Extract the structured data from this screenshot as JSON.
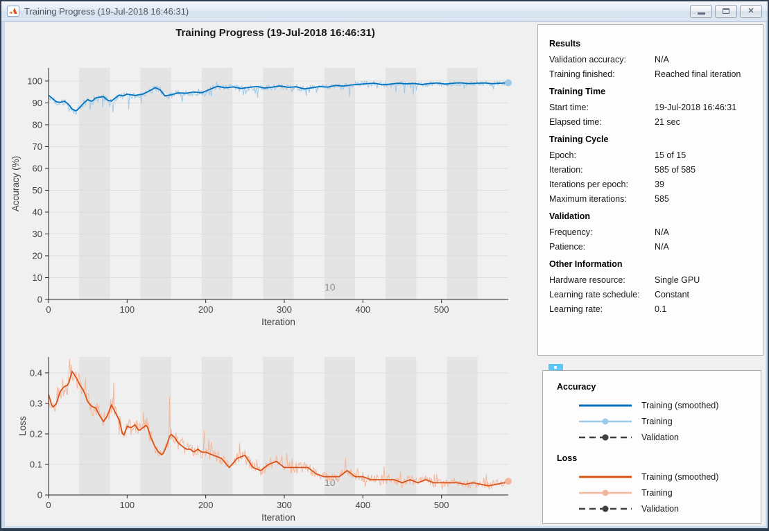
{
  "window": {
    "title": "Training Progress (19-Jul-2018 16:46:31)",
    "icon": "matlab-logo",
    "buttons": {
      "minimize": "Minimize",
      "maximize": "Maximize",
      "close": "Close"
    }
  },
  "figure_title": "Training Progress (19-Jul-2018 16:46:31)",
  "colors": {
    "accent_blue": "#0072BD",
    "light_blue": "#9ec9e8",
    "accent_orange": "#D95319",
    "light_orange": "#f5b79b",
    "validation_gray": "#3f3f3f",
    "epoch_band": "#e4e4e4",
    "figure_bg": "#f0f0f0",
    "axis_text": "#424242",
    "epoch_label_gray": "#8c8c8c"
  },
  "info_panel": {
    "sections": [
      {
        "header": "Results",
        "rows": [
          {
            "label": "Validation accuracy:",
            "value": "N/A"
          },
          {
            "label": "Training finished:",
            "value": "Reached final iteration"
          }
        ]
      },
      {
        "header": "Training Time",
        "rows": [
          {
            "label": "Start time:",
            "value": "19-Jul-2018 16:46:31"
          },
          {
            "label": "Elapsed time:",
            "value": "21 sec"
          }
        ]
      },
      {
        "header": "Training Cycle",
        "rows": [
          {
            "label": "Epoch:",
            "value": "15 of 15"
          },
          {
            "label": "Iteration:",
            "value": "585 of 585"
          },
          {
            "label": "Iterations per epoch:",
            "value": "39"
          },
          {
            "label": "Maximum iterations:",
            "value": "585"
          }
        ]
      },
      {
        "header": "Validation",
        "rows": [
          {
            "label": "Frequency:",
            "value": "N/A"
          },
          {
            "label": "Patience:",
            "value": "N/A"
          }
        ]
      },
      {
        "header": "Other Information",
        "rows": [
          {
            "label": "Hardware resource:",
            "value": "Single GPU"
          },
          {
            "label": "Learning rate schedule:",
            "value": "Constant"
          },
          {
            "label": "Learning rate:",
            "value": "0.1"
          }
        ]
      }
    ]
  },
  "legend_panel": {
    "groups": [
      {
        "header": "Accuracy",
        "items": [
          {
            "label": "Training (smoothed)",
            "style": "solid",
            "color": "#0072BD"
          },
          {
            "label": "Training",
            "style": "line-marker",
            "color": "#9ec9e8"
          },
          {
            "label": "Validation",
            "style": "dashed-marker",
            "color": "#3f3f3f"
          }
        ]
      },
      {
        "header": "Loss",
        "items": [
          {
            "label": "Training (smoothed)",
            "style": "solid",
            "color": "#D95319"
          },
          {
            "label": "Training",
            "style": "line-marker",
            "color": "#f5b79b"
          },
          {
            "label": "Validation",
            "style": "dashed-marker",
            "color": "#3f3f3f"
          }
        ]
      }
    ]
  },
  "chart_data": [
    {
      "type": "line",
      "id": "accuracy",
      "ylabel": "Accuracy (%)",
      "xlabel": "Iteration",
      "xlim": [
        0,
        585
      ],
      "ylim": [
        0,
        106
      ],
      "xticks": [
        0,
        100,
        200,
        300,
        400,
        500
      ],
      "yticks": [
        0,
        10,
        20,
        30,
        40,
        50,
        60,
        70,
        80,
        90,
        100
      ],
      "grid": "horizontal",
      "epochs": 15,
      "iterations_per_epoch": 39,
      "shaded_epochs": "even",
      "epoch_label": {
        "text": "10",
        "iter": 358
      },
      "series": [
        {
          "name": "Training (smoothed)",
          "color": "#0072BD",
          "width": 1.8,
          "plotted": true,
          "x": [
            0,
            5,
            10,
            15,
            20,
            25,
            30,
            35,
            40,
            45,
            50,
            55,
            60,
            65,
            70,
            75,
            80,
            85,
            90,
            95,
            100,
            110,
            120,
            130,
            136,
            142,
            148,
            155,
            165,
            175,
            185,
            195,
            205,
            215,
            225,
            235,
            245,
            255,
            265,
            275,
            285,
            295,
            305,
            315,
            325,
            335,
            345,
            355,
            365,
            375,
            385,
            395,
            405,
            415,
            425,
            435,
            445,
            455,
            465,
            475,
            485,
            495,
            505,
            515,
            525,
            535,
            545,
            555,
            565,
            575,
            585
          ],
          "y": [
            93.5,
            92,
            90.5,
            90.2,
            90.8,
            89.5,
            87.2,
            86.2,
            88,
            90,
            91.5,
            90.6,
            92.3,
            92.6,
            92.9,
            91.2,
            90.8,
            92.3,
            93.6,
            93.2,
            94,
            93.4,
            94,
            95.8,
            97,
            96,
            93.2,
            93.6,
            94.6,
            94.4,
            95,
            94.6,
            96.2,
            97.6,
            96.9,
            97.3,
            96.6,
            97.1,
            97.5,
            96.8,
            97.2,
            97.8,
            97.1,
            97.4,
            96.4,
            96.9,
            97.5,
            97.2,
            98,
            97.7,
            98.2,
            98.5,
            98.8,
            99,
            98.3,
            98.6,
            99,
            98.7,
            98.9,
            98.4,
            98.9,
            99.1,
            98.6,
            99,
            99.2,
            98.8,
            99,
            99.1,
            98.8,
            99,
            99.2
          ]
        },
        {
          "name": "Training",
          "color": "#9ec9e8",
          "width": 1,
          "plotted": true,
          "derived": "noisy-around-smoothed",
          "noise": {
            "seed": 7,
            "jitter": 1.1,
            "dip_prob": 0.13,
            "dip_max": 8,
            "clamp": [
              0,
              100
            ]
          },
          "end_marker": true
        },
        {
          "name": "Validation",
          "plotted": false,
          "value": "N/A"
        }
      ]
    },
    {
      "type": "line",
      "id": "loss",
      "ylabel": "Loss",
      "xlabel": "Iteration",
      "xlim": [
        0,
        585
      ],
      "ylim": [
        0,
        0.452
      ],
      "xticks": [
        0,
        100,
        200,
        300,
        400,
        500
      ],
      "yticks": [
        0,
        0.1,
        0.2,
        0.3,
        0.4
      ],
      "grid": "horizontal",
      "epochs": 15,
      "iterations_per_epoch": 39,
      "shaded_epochs": "even",
      "epoch_label": {
        "text": "10",
        "iter": 358
      },
      "series": [
        {
          "name": "Training (smoothed)",
          "color": "#D95319",
          "width": 1.8,
          "plotted": true,
          "x": [
            0,
            5,
            10,
            15,
            20,
            25,
            30,
            35,
            40,
            45,
            50,
            55,
            60,
            65,
            70,
            75,
            80,
            85,
            90,
            95,
            100,
            105,
            110,
            115,
            120,
            125,
            130,
            135,
            140,
            145,
            150,
            155,
            160,
            165,
            170,
            175,
            180,
            185,
            190,
            195,
            200,
            210,
            220,
            230,
            240,
            250,
            260,
            270,
            280,
            290,
            300,
            310,
            320,
            330,
            340,
            350,
            360,
            370,
            380,
            390,
            400,
            410,
            420,
            430,
            440,
            450,
            460,
            470,
            480,
            490,
            500,
            510,
            520,
            530,
            540,
            550,
            560,
            570,
            580,
            585
          ],
          "y": [
            0.33,
            0.285,
            0.3,
            0.34,
            0.355,
            0.36,
            0.405,
            0.385,
            0.36,
            0.34,
            0.305,
            0.29,
            0.285,
            0.26,
            0.24,
            0.26,
            0.295,
            0.27,
            0.245,
            0.19,
            0.225,
            0.22,
            0.23,
            0.21,
            0.22,
            0.23,
            0.19,
            0.16,
            0.14,
            0.13,
            0.16,
            0.2,
            0.19,
            0.17,
            0.16,
            0.15,
            0.15,
            0.14,
            0.15,
            0.14,
            0.14,
            0.13,
            0.12,
            0.09,
            0.12,
            0.13,
            0.09,
            0.08,
            0.1,
            0.11,
            0.09,
            0.09,
            0.09,
            0.09,
            0.07,
            0.06,
            0.06,
            0.06,
            0.08,
            0.06,
            0.06,
            0.05,
            0.05,
            0.05,
            0.05,
            0.04,
            0.05,
            0.04,
            0.05,
            0.04,
            0.04,
            0.04,
            0.04,
            0.035,
            0.04,
            0.035,
            0.03,
            0.035,
            0.04,
            0.045
          ]
        },
        {
          "name": "Training",
          "color": "#f5b79b",
          "width": 1,
          "plotted": true,
          "derived": "noisy-around-smoothed",
          "noise": {
            "seed": 11,
            "jitter": 0.014,
            "spike_prob": 0.12,
            "spike_max": 0.12,
            "clamp": [
              0.004,
              0.47
            ]
          },
          "end_marker": true
        },
        {
          "name": "Validation",
          "plotted": false,
          "value": "N/A"
        }
      ]
    }
  ]
}
